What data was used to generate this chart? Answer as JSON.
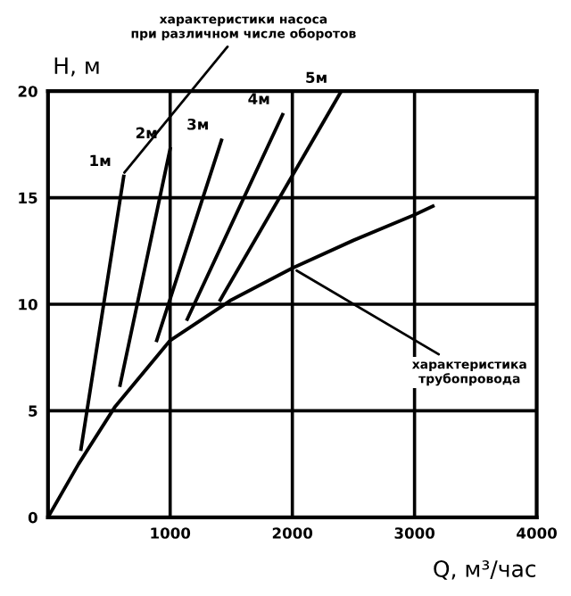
{
  "chart_data": {
    "type": "line",
    "xlabel": "Q, м³/час",
    "ylabel": "H, м",
    "xlim": [
      0,
      4000
    ],
    "ylim": [
      0,
      20
    ],
    "xticks": [
      {
        "value": 0,
        "label": null
      },
      1000,
      2000,
      3000,
      4000
    ],
    "yticks": [
      0,
      5,
      10,
      15,
      20
    ],
    "grid": true,
    "legend": false,
    "marker": "none",
    "line_style": "solid",
    "series": [
      {
        "name": "1м",
        "color": "#000000",
        "x": [
          270,
          620
        ],
        "values": [
          3.2,
          16
        ]
      },
      {
        "name": "2м",
        "color": "#000000",
        "x": [
          590,
          1000
        ],
        "values": [
          6.2,
          17.3
        ]
      },
      {
        "name": "3м",
        "color": "#000000",
        "x": [
          890,
          1420
        ],
        "values": [
          8.3,
          17.7
        ]
      },
      {
        "name": "4м",
        "color": "#000000",
        "x": [
          1140,
          1920
        ],
        "values": [
          9.3,
          18.9
        ]
      },
      {
        "name": "5м",
        "color": "#000000",
        "x": [
          1410,
          2390
        ],
        "values": [
          10.2,
          19.9
        ]
      },
      {
        "color": "#000000",
        "x": [
          0,
          250,
          550,
          1000,
          1500,
          2000,
          2500,
          3000,
          3150
        ],
        "values": [
          0,
          2.5,
          5.2,
          8.3,
          10.2,
          11.7,
          13,
          14.2,
          14.6
        ]
      }
    ],
    "annotations": [
      {
        "text": "характеристики насоса\nпри различном числе оборотов",
        "x": 600,
        "y": 16
      },
      {
        "text": "характеристика\nтрубопровода",
        "x": 2000,
        "y": 11.7
      }
    ]
  }
}
